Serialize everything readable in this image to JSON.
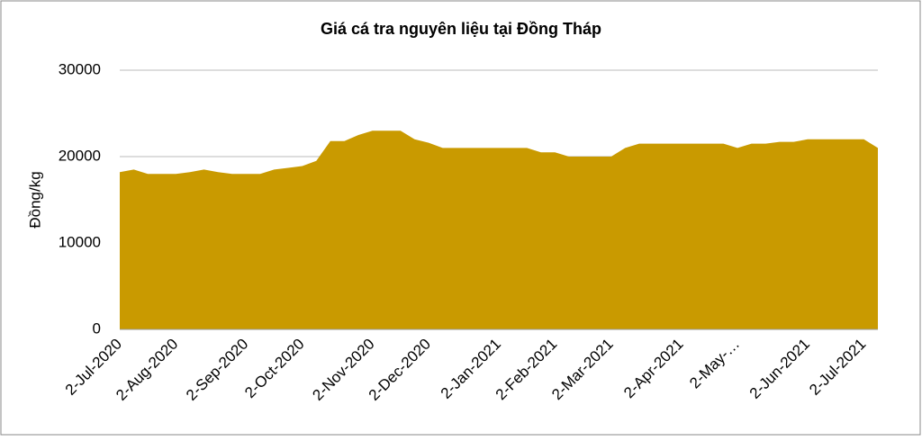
{
  "chart_data": {
    "type": "area",
    "title": "Giá cá tra nguyên liệu tại Đồng Tháp",
    "y_label": "Đồng/kg",
    "categories": [
      "2-Jul-2020",
      null,
      null,
      null,
      "2-Aug-2020",
      null,
      null,
      null,
      null,
      "2-Sep-2020",
      null,
      null,
      null,
      "2-Oct-2020",
      null,
      null,
      null,
      null,
      "2-Nov-2020",
      null,
      null,
      null,
      "2-Dec-2020",
      null,
      null,
      null,
      null,
      "2-Jan-2021",
      null,
      null,
      null,
      "2-Feb-2021",
      null,
      null,
      null,
      "2-Mar-2021",
      null,
      null,
      null,
      null,
      "2-Apr-2021",
      null,
      null,
      null,
      "2-May-…",
      null,
      null,
      null,
      null,
      "2-Jun-2021",
      null,
      null,
      null,
      "2-Jul-2021",
      null
    ],
    "values": [
      18200,
      18500,
      18000,
      18000,
      18000,
      18200,
      18500,
      18200,
      18000,
      18000,
      18000,
      18500,
      18700,
      18900,
      19500,
      21800,
      21800,
      22500,
      23000,
      23000,
      23000,
      22000,
      21600,
      21000,
      21000,
      21000,
      21000,
      21000,
      21000,
      21000,
      20500,
      20500,
      20000,
      20000,
      20000,
      20000,
      21000,
      21500,
      21500,
      21500,
      21500,
      21500,
      21500,
      21500,
      21000,
      21500,
      21500,
      21700,
      21700,
      22000,
      22000,
      22000,
      22000,
      22000,
      21000
    ],
    "color": "#c99a00",
    "ylim": [
      0,
      30000
    ],
    "yticks": [
      0,
      10000,
      20000,
      30000
    ],
    "grid": true
  }
}
